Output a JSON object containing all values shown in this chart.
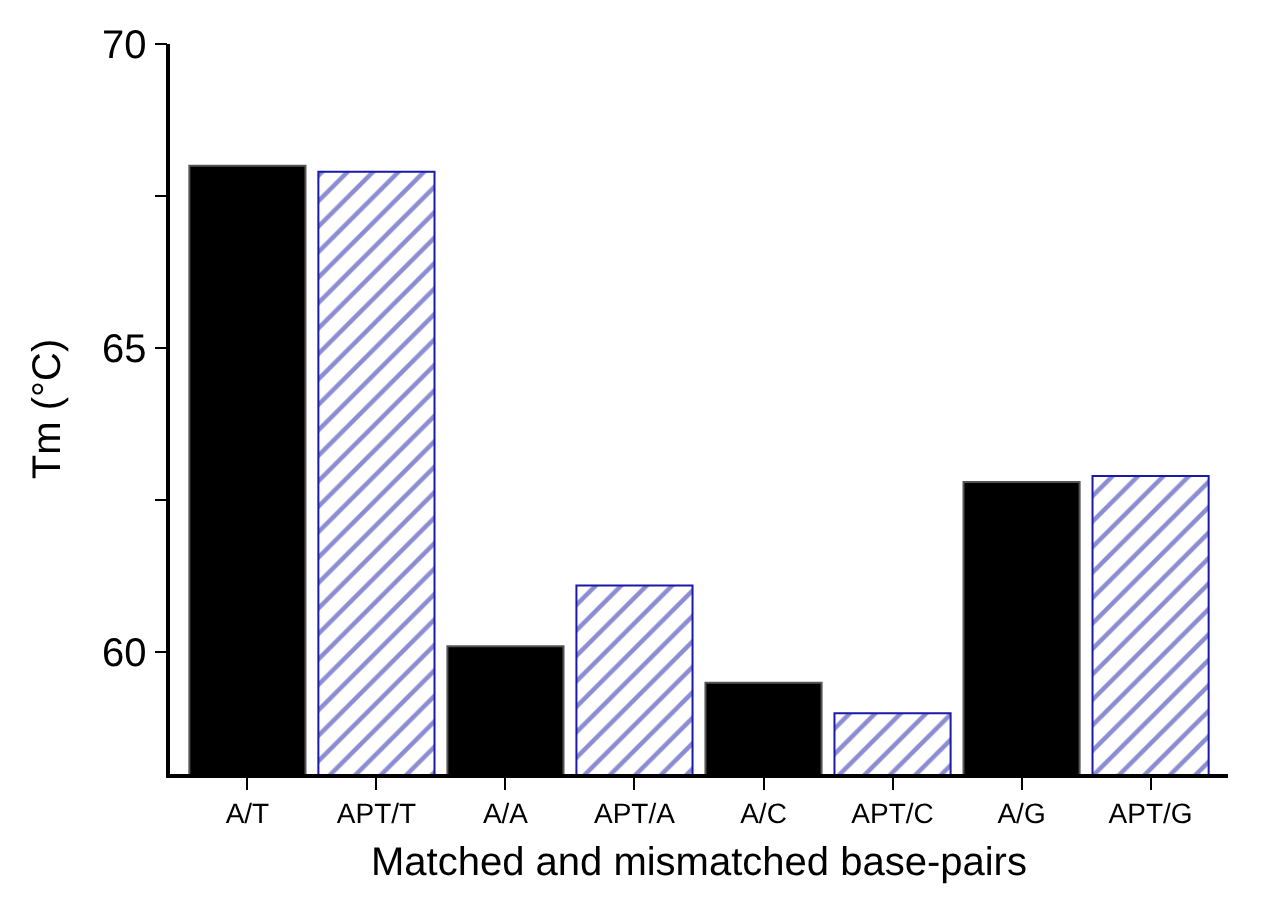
{
  "chart_data": {
    "type": "bar",
    "xlabel": "Matched and mismatched base-pairs",
    "ylabel": "Tm (°C)",
    "categories": [
      "A/T",
      "APT/T",
      "A/A",
      "APT/A",
      "A/C",
      "APT/C",
      "A/G",
      "APT/G"
    ],
    "series": [
      {
        "color": "#000000",
        "values": [
          68.0,
          null,
          60.1,
          null,
          59.5,
          null,
          62.8,
          null
        ]
      },
      {
        "color": "#1a1aa6",
        "values": [
          null,
          67.9,
          null,
          61.1,
          null,
          59.0,
          null,
          62.9
        ]
      }
    ],
    "ylim": [
      58,
      70
    ],
    "yticks": [
      60,
      {
        "value": 62.5,
        "label": null
      },
      65,
      {
        "value": 67.5,
        "label": null
      },
      70
    ]
  }
}
